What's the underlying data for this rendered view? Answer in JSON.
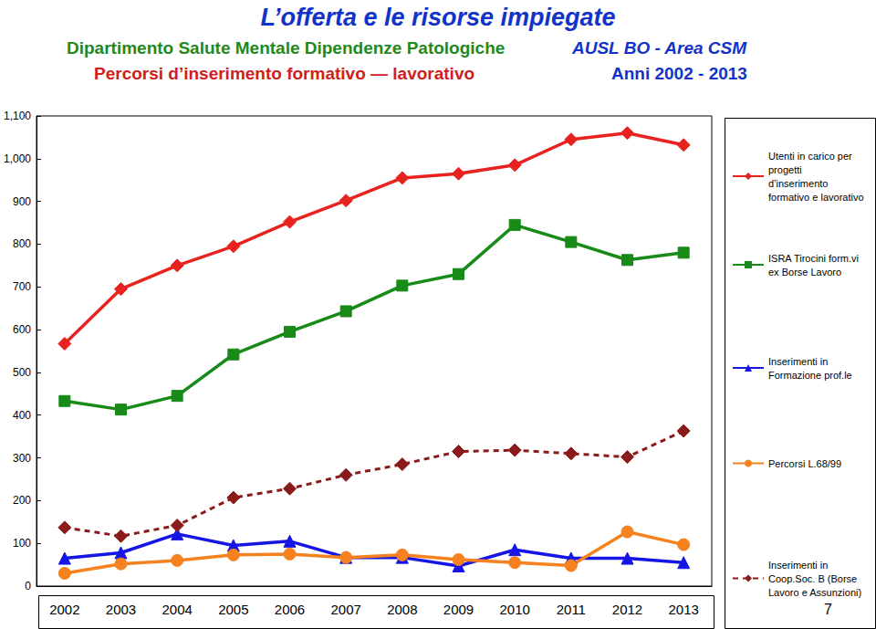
{
  "chart_data": {
    "type": "line",
    "title": "L’offerta e le risorse impiegate",
    "subtitle": [
      "Dipartimento Salute Mentale Dipendenze Patologiche",
      "AUSL BO - Area CSM",
      "Percorsi d’inserimento formativo — lavorativo",
      "Anni 2002 - 2013"
    ],
    "annotations": [
      "7"
    ],
    "categories": [
      "2002",
      "2003",
      "2004",
      "2005",
      "2006",
      "2007",
      "2008",
      "2009",
      "2010",
      "2011",
      "2012",
      "2013"
    ],
    "series": [
      {
        "name": "Utenti in carico per progetti d’inserimento formativo e lavorativo",
        "color": "#e8231f",
        "marker": "diamond",
        "line_style": "solid",
        "values": [
          567,
          695,
          750,
          795,
          852,
          902,
          955,
          965,
          985,
          1045,
          1060,
          1032
        ]
      },
      {
        "name": "ISRA Tirocini form.vi ex Borse Lavoro",
        "color": "#178a17",
        "marker": "square",
        "line_style": "solid",
        "values": [
          433,
          413,
          445,
          542,
          595,
          643,
          703,
          730,
          845,
          805,
          763,
          780
        ]
      },
      {
        "name": "Inserimenti in Formazione prof.le",
        "color": "#1515e6",
        "marker": "triangle",
        "line_style": "solid",
        "values": [
          65,
          78,
          122,
          95,
          105,
          67,
          67,
          47,
          85,
          65,
          65,
          55
        ]
      },
      {
        "name": "Percorsi L.68/99",
        "color": "#f5821f",
        "marker": "circle",
        "line_style": "solid",
        "values": [
          30,
          52,
          60,
          73,
          75,
          67,
          73,
          62,
          55,
          48,
          127,
          97
        ]
      },
      {
        "name": "Inserimenti in Coop.Soc. B (Borse Lavoro e Assunzioni)",
        "color": "#8b1a1a",
        "marker": "diamond",
        "line_style": "dashed",
        "values": [
          137,
          117,
          142,
          207,
          228,
          260,
          285,
          315,
          318,
          310,
          302,
          363
        ]
      }
    ],
    "ylim": [
      0,
      1100
    ],
    "yticks": [
      0,
      100,
      200,
      300,
      400,
      500,
      600,
      700,
      800,
      900,
      1000,
      1100
    ],
    "grid": false,
    "legend": "right"
  }
}
